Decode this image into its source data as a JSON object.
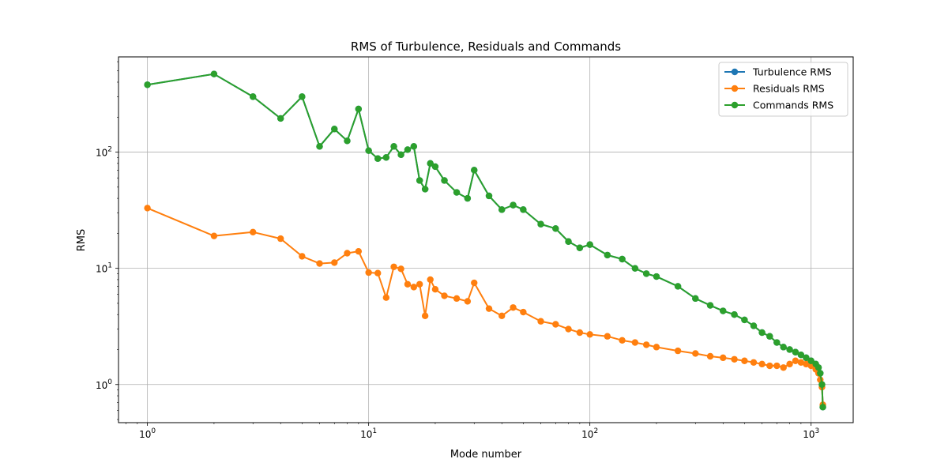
{
  "chart_data": {
    "type": "line",
    "title": "RMS of Turbulence, Residuals and Commands",
    "xlabel": "Mode number",
    "ylabel": "RMS",
    "xscale": "log",
    "yscale": "log",
    "xlim": [
      0.74,
      1550
    ],
    "ylim": [
      0.47,
      660
    ],
    "grid": true,
    "legend_position": "top-right",
    "x_ticks": [
      {
        "value": 1,
        "base": "10",
        "exp": "0"
      },
      {
        "value": 10,
        "base": "10",
        "exp": "1"
      },
      {
        "value": 100,
        "base": "10",
        "exp": "2"
      },
      {
        "value": 1000,
        "base": "10",
        "exp": "3"
      }
    ],
    "y_ticks": [
      {
        "value": 1,
        "base": "10",
        "exp": "0"
      },
      {
        "value": 10,
        "base": "10",
        "exp": "1"
      },
      {
        "value": 100,
        "base": "10",
        "exp": "2"
      }
    ],
    "x": [
      1,
      2,
      3,
      4,
      5,
      6,
      7,
      8,
      9,
      10,
      11,
      12,
      13,
      14,
      15,
      16,
      17,
      18,
      19,
      20,
      22,
      25,
      28,
      30,
      35,
      40,
      45,
      50,
      60,
      70,
      80,
      90,
      100,
      120,
      140,
      160,
      180,
      200,
      250,
      300,
      350,
      400,
      450,
      500,
      550,
      600,
      650,
      700,
      750,
      800,
      850,
      900,
      950,
      1000,
      1050,
      1080,
      1100,
      1120,
      1130
    ],
    "series": [
      {
        "name": "Turbulence RMS",
        "color": "#1f77b4",
        "values": [
          380,
          470,
          300,
          195,
          300,
          112,
          158,
          125,
          235,
          103,
          88,
          90,
          112,
          95,
          105,
          112,
          57,
          48,
          80,
          75,
          57,
          45,
          40,
          70,
          42,
          32,
          35,
          32,
          24,
          22,
          17,
          15,
          16,
          13,
          12,
          10,
          9,
          8.5,
          7,
          5.5,
          4.8,
          4.3,
          4.0,
          3.6,
          3.2,
          2.8,
          2.6,
          2.3,
          2.1,
          2.0,
          1.9,
          1.8,
          1.7,
          1.6,
          1.5,
          1.4,
          1.25,
          1.0,
          0.64
        ]
      },
      {
        "name": "Residuals RMS",
        "color": "#ff7f0e",
        "values": [
          33,
          19,
          20.5,
          18,
          12.7,
          11,
          11.2,
          13.5,
          14,
          9.2,
          9.1,
          5.6,
          10.3,
          9.9,
          7.3,
          6.9,
          7.3,
          3.9,
          8,
          6.6,
          5.8,
          5.5,
          5.2,
          7.5,
          4.5,
          3.9,
          4.6,
          4.2,
          3.5,
          3.3,
          3.0,
          2.8,
          2.7,
          2.6,
          2.4,
          2.3,
          2.2,
          2.1,
          1.95,
          1.85,
          1.75,
          1.7,
          1.65,
          1.6,
          1.55,
          1.5,
          1.45,
          1.45,
          1.4,
          1.5,
          1.6,
          1.55,
          1.5,
          1.45,
          1.35,
          1.25,
          1.1,
          0.95,
          0.67
        ]
      },
      {
        "name": "Commands RMS",
        "color": "#2ca02c",
        "values": [
          380,
          470,
          300,
          195,
          300,
          112,
          158,
          125,
          235,
          103,
          88,
          90,
          112,
          95,
          105,
          112,
          57,
          48,
          80,
          75,
          57,
          45,
          40,
          70,
          42,
          32,
          35,
          32,
          24,
          22,
          17,
          15,
          16,
          13,
          12,
          10,
          9,
          8.5,
          7,
          5.5,
          4.8,
          4.3,
          4.0,
          3.6,
          3.2,
          2.8,
          2.6,
          2.3,
          2.1,
          2.0,
          1.9,
          1.8,
          1.7,
          1.6,
          1.5,
          1.4,
          1.25,
          1.0,
          0.64
        ]
      }
    ]
  }
}
